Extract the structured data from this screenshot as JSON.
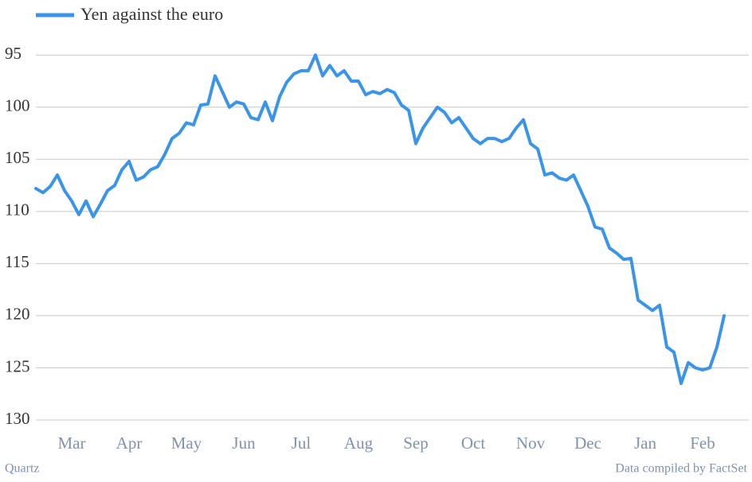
{
  "chart_data": {
    "type": "line",
    "categories": [
      null,
      null,
      null,
      null,
      null,
      "Mar",
      null,
      null,
      null,
      null,
      null,
      null,
      null,
      "Apr",
      null,
      null,
      null,
      null,
      null,
      null,
      null,
      "May",
      null,
      null,
      null,
      null,
      null,
      null,
      null,
      "Jun",
      null,
      null,
      null,
      null,
      null,
      null,
      null,
      "Jul",
      null,
      null,
      null,
      null,
      null,
      null,
      null,
      "Aug",
      null,
      null,
      null,
      null,
      null,
      null,
      null,
      "Sep",
      null,
      null,
      null,
      null,
      null,
      null,
      null,
      "Oct",
      null,
      null,
      null,
      null,
      null,
      null,
      null,
      "Nov",
      null,
      null,
      null,
      null,
      null,
      null,
      null,
      "Dec",
      null,
      null,
      null,
      null,
      null,
      null,
      null,
      "Jan",
      null,
      null,
      null,
      null,
      null,
      null,
      null,
      "Feb",
      null,
      null,
      null
    ],
    "series": [
      {
        "name": "Yen against the euro",
        "color": "#3a94e8",
        "values": [
          107.8,
          108.2,
          107.6,
          106.5,
          108,
          109,
          110.3,
          109,
          110.5,
          109.3,
          108,
          107.5,
          106,
          105.2,
          107,
          106.7,
          106,
          105.7,
          104.5,
          103,
          102.5,
          101.5,
          101.7,
          99.8,
          99.7,
          97,
          98.5,
          100,
          99.5,
          99.7,
          101,
          101.2,
          99.5,
          101.3,
          99,
          97.6,
          96.8,
          96.5,
          96.5,
          95,
          97,
          96,
          97,
          96.5,
          97.5,
          97.5,
          98.8,
          98.5,
          98.7,
          98.3,
          98.6,
          99.8,
          100.3,
          103.5,
          102,
          101,
          100,
          100.5,
          101.5,
          101,
          102,
          103,
          103.5,
          103,
          103,
          103.3,
          103,
          102,
          101.2,
          103.5,
          104,
          106.5,
          106.3,
          106.8,
          107,
          106.5,
          108,
          109.5,
          111.5,
          111.7,
          113.5,
          114,
          114.6,
          114.5,
          118.5,
          119,
          119.5,
          119,
          123,
          123.5,
          126.5,
          124.5,
          125,
          125.2,
          125,
          123,
          120
        ]
      }
    ],
    "ylim": [
      130,
      93
    ],
    "yticks": [
      95,
      100,
      105,
      110,
      115,
      120,
      125,
      130
    ],
    "grid": true,
    "credit": "Quartz",
    "source": "Data compiled by FactSet"
  }
}
